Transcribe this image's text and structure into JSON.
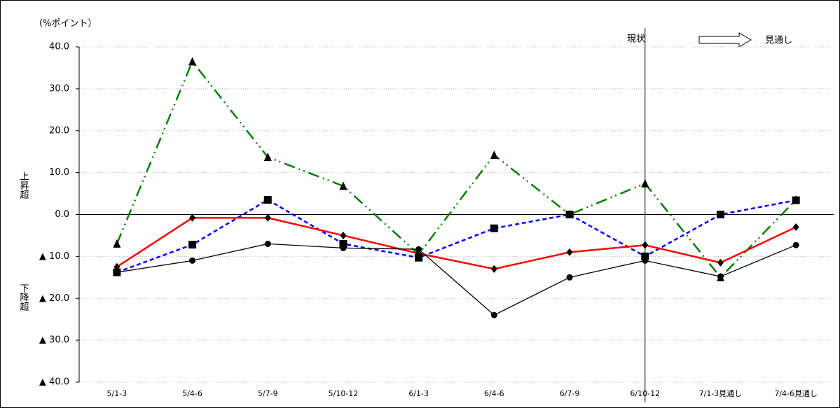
{
  "chart_data": {
    "type": "line",
    "unit_label": "（%ポイント）",
    "up_label": "上昇超",
    "down_label": "下降超",
    "annotation_current": "現状",
    "annotation_outlook": "見通し",
    "categories": [
      "5/1-3",
      "5/4-6",
      "5/7-9",
      "5/10-12",
      "6/1-3",
      "6/4-6",
      "6/7-9",
      "6/10-12",
      "7/1-3見通し",
      "7/4-6見通し"
    ],
    "series": [
      {
        "color": "#008000",
        "linestyle": "dashdotdot",
        "marker": "triangle",
        "values": [
          -7,
          36.5,
          13.7,
          6.8,
          -9.5,
          14.2,
          0,
          7.4,
          -15,
          3.5
        ]
      },
      {
        "color": "#0000ff",
        "linestyle": "dashed",
        "marker": "square",
        "values": [
          -13.8,
          -7.2,
          3.5,
          -7,
          -10.3,
          -3.3,
          0,
          -10,
          0,
          3.4
        ]
      },
      {
        "color": "#ff0000",
        "linestyle": "solid",
        "marker": "diamond",
        "values": [
          -12.5,
          -0.8,
          -0.8,
          -5,
          -9.3,
          -13,
          -9,
          -7.3,
          -11.5,
          -3
        ]
      },
      {
        "color": "#000000",
        "linestyle": "solid",
        "marker": "circle",
        "values": [
          -13.8,
          -11,
          -7,
          -8,
          -8.3,
          -24,
          -15,
          -11,
          -14.8,
          -7.3
        ]
      }
    ],
    "ylim": [
      -40,
      40
    ],
    "yticks": [
      {
        "value": -40,
        "label": "▲ 40.0"
      },
      {
        "value": -30,
        "label": "▲ 30.0"
      },
      {
        "value": -20,
        "label": "▲ 20.0"
      },
      {
        "value": -10,
        "label": "▲ 10.0"
      },
      {
        "value": 0,
        "label": "0.0"
      },
      {
        "value": 10,
        "label": "10.0"
      },
      {
        "value": 20,
        "label": "20.0"
      },
      {
        "value": 30,
        "label": "30.0"
      },
      {
        "value": 40,
        "label": "40.0"
      }
    ],
    "grid": true
  }
}
